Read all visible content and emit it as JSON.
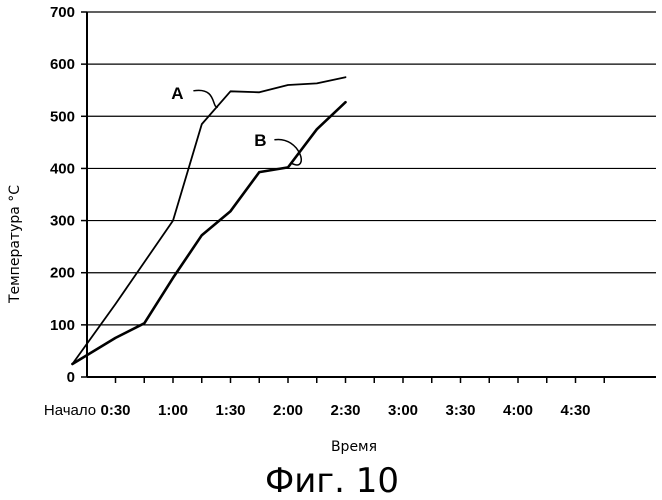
{
  "chart_data": {
    "type": "line",
    "xlabel": "Время",
    "ylabel": "Температура °C",
    "caption": "Фиг. 10",
    "x_tick_labels": [
      "Начало",
      "0:30",
      "1:00",
      "1:30",
      "2:00",
      "2:30",
      "3:00",
      "3:30",
      "4:00",
      "4:30"
    ],
    "ylim": [
      0,
      700
    ],
    "yticks": [
      0,
      100,
      200,
      300,
      400,
      500,
      600,
      700
    ],
    "grid": "horizontal",
    "series": [
      {
        "name": "A",
        "points": [
          [
            0.25,
            25
          ],
          [
            1.0,
            140
          ],
          [
            2.0,
            300
          ],
          [
            2.5,
            485
          ],
          [
            3.0,
            548
          ],
          [
            3.5,
            546
          ],
          [
            4.0,
            560
          ],
          [
            4.5,
            563
          ],
          [
            5.0,
            575
          ]
        ]
      },
      {
        "name": "B",
        "points": [
          [
            0.25,
            25
          ],
          [
            1.0,
            75
          ],
          [
            1.5,
            103
          ],
          [
            2.0,
            190
          ],
          [
            2.5,
            272
          ],
          [
            3.0,
            318
          ],
          [
            3.5,
            393
          ],
          [
            4.0,
            402
          ],
          [
            4.5,
            475
          ],
          [
            5.0,
            527
          ]
        ]
      }
    ],
    "colors": {
      "line": "#000000",
      "grid": "#000000",
      "background": "#ffffff"
    }
  }
}
